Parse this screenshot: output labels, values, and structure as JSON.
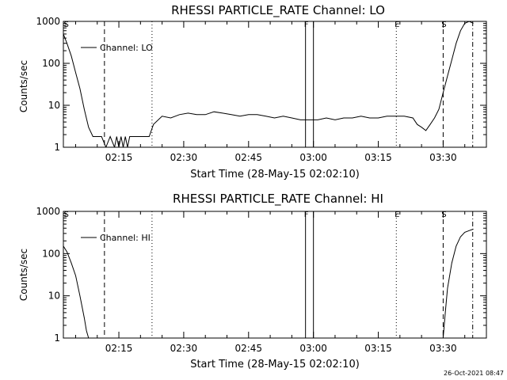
{
  "footer": {
    "timestamp": "26-Oct-2021 08:47"
  },
  "time_ref": "2015-05-28T02:02:10",
  "chart_data": [
    {
      "type": "line",
      "title": "RHESSI PARTICLE_RATE Channel: LO",
      "xlabel": "Start Time (28-May-15 02:02:10)",
      "ylabel": "Counts/sec",
      "yscale": "log",
      "ylim": [
        1,
        1000
      ],
      "xlim": [
        "02:02:10",
        "03:40:00"
      ],
      "ytick_labels": [
        "1",
        "10",
        "100",
        "1000"
      ],
      "xtick_labels": [
        "02:15",
        "02:30",
        "02:45",
        "03:00",
        "03:15",
        "03:30"
      ],
      "grid": false,
      "legend": {
        "position": "top-left",
        "entries": [
          "Channel: LO"
        ]
      },
      "markers": [
        {
          "label": "S",
          "time": "02:02:40",
          "style": "none"
        },
        {
          "label": "",
          "time": "02:11:40",
          "style": "dashed"
        },
        {
          "label": "",
          "time": "02:22:40",
          "style": "dotted"
        },
        {
          "label": "F",
          "time": "02:58:10",
          "style": "solid"
        },
        {
          "label": "",
          "time": "03:00:00",
          "style": "solid"
        },
        {
          "label": "E",
          "time": "03:19:10",
          "style": "dotted"
        },
        {
          "label": "S",
          "time": "03:30:00",
          "style": "dashed"
        },
        {
          "label": "",
          "time": "03:36:50",
          "style": "dashdot"
        }
      ],
      "series": [
        {
          "name": "Channel: LO",
          "x": [
            "02:02:10",
            "02:03:00",
            "02:04:00",
            "02:05:00",
            "02:06:00",
            "02:07:00",
            "02:08:00",
            "02:09:00",
            "02:10:00",
            "02:11:00",
            "02:12:00",
            "02:13:00",
            "02:14:00",
            "02:14:30",
            "02:15:00",
            "02:15:30",
            "02:16:00",
            "02:16:30",
            "02:17:00",
            "02:17:30",
            "02:18:00",
            "02:19:00",
            "02:20:00",
            "02:21:00",
            "02:22:00",
            "02:23:00",
            "02:25:00",
            "02:27:00",
            "02:29:00",
            "02:31:00",
            "02:33:00",
            "02:35:00",
            "02:37:00",
            "02:39:00",
            "02:41:00",
            "02:43:00",
            "02:45:00",
            "02:47:00",
            "02:49:00",
            "02:51:00",
            "02:53:00",
            "02:55:00",
            "02:57:00",
            "02:59:00",
            "03:01:00",
            "03:03:00",
            "03:05:00",
            "03:07:00",
            "03:09:00",
            "03:11:00",
            "03:13:00",
            "03:15:00",
            "03:17:00",
            "03:19:00",
            "03:21:00",
            "03:23:00",
            "03:24:00",
            "03:25:00",
            "03:26:00",
            "03:27:00",
            "03:28:00",
            "03:29:00",
            "03:30:00",
            "03:31:00",
            "03:32:00",
            "03:33:00",
            "03:34:00",
            "03:35:00",
            "03:36:00",
            "03:37:00"
          ],
          "y": [
            500,
            300,
            150,
            60,
            25,
            8,
            3,
            1.8,
            1.8,
            1.8,
            1,
            1.8,
            1,
            1.8,
            1,
            1.8,
            1,
            1.8,
            1,
            1.8,
            1.8,
            1.8,
            1.8,
            1.8,
            1.8,
            3.5,
            5.5,
            5,
            6,
            6.5,
            6,
            6,
            7,
            6.5,
            6,
            5.5,
            6,
            6,
            5.5,
            5,
            5.5,
            5,
            4.5,
            4.5,
            4.5,
            5,
            4.5,
            5,
            5,
            5.5,
            5,
            5,
            5.5,
            5.5,
            5.5,
            5,
            3.5,
            3,
            2.5,
            3.5,
            5,
            8,
            20,
            50,
            120,
            300,
            600,
            900,
            1000,
            900
          ]
        }
      ]
    },
    {
      "type": "line",
      "title": "RHESSI PARTICLE_RATE Channel: HI",
      "xlabel": "Start Time (28-May-15 02:02:10)",
      "ylabel": "Counts/sec",
      "yscale": "log",
      "ylim": [
        1,
        1000
      ],
      "xlim": [
        "02:02:10",
        "03:40:00"
      ],
      "ytick_labels": [
        "1",
        "10",
        "100",
        "1000"
      ],
      "xtick_labels": [
        "02:15",
        "02:30",
        "02:45",
        "03:00",
        "03:15",
        "03:30"
      ],
      "grid": false,
      "legend": {
        "position": "top-left",
        "entries": [
          "Channel: HI"
        ]
      },
      "markers": [
        {
          "label": "S",
          "time": "02:02:40",
          "style": "none"
        },
        {
          "label": "",
          "time": "02:11:40",
          "style": "dashed"
        },
        {
          "label": "",
          "time": "02:22:40",
          "style": "dotted"
        },
        {
          "label": "F",
          "time": "02:58:10",
          "style": "solid"
        },
        {
          "label": "",
          "time": "03:00:00",
          "style": "solid"
        },
        {
          "label": "E",
          "time": "03:19:10",
          "style": "dotted"
        },
        {
          "label": "S",
          "time": "03:30:00",
          "style": "dashed"
        },
        {
          "label": "",
          "time": "03:36:50",
          "style": "dashdot"
        }
      ],
      "series": [
        {
          "name": "Channel: HI",
          "x": [
            "02:02:10",
            "02:03:00",
            "02:04:00",
            "02:05:00",
            "02:06:00",
            "02:07:00",
            "02:07:30",
            "02:08:00",
            "03:30:00",
            "03:30:30",
            "03:31:00",
            "03:32:00",
            "03:33:00",
            "03:34:00",
            "03:35:00",
            "03:36:00",
            "03:37:00"
          ],
          "y": [
            150,
            110,
            60,
            30,
            10,
            3,
            1.5,
            1,
            1,
            4,
            15,
            60,
            150,
            250,
            320,
            350,
            380
          ]
        }
      ]
    }
  ]
}
